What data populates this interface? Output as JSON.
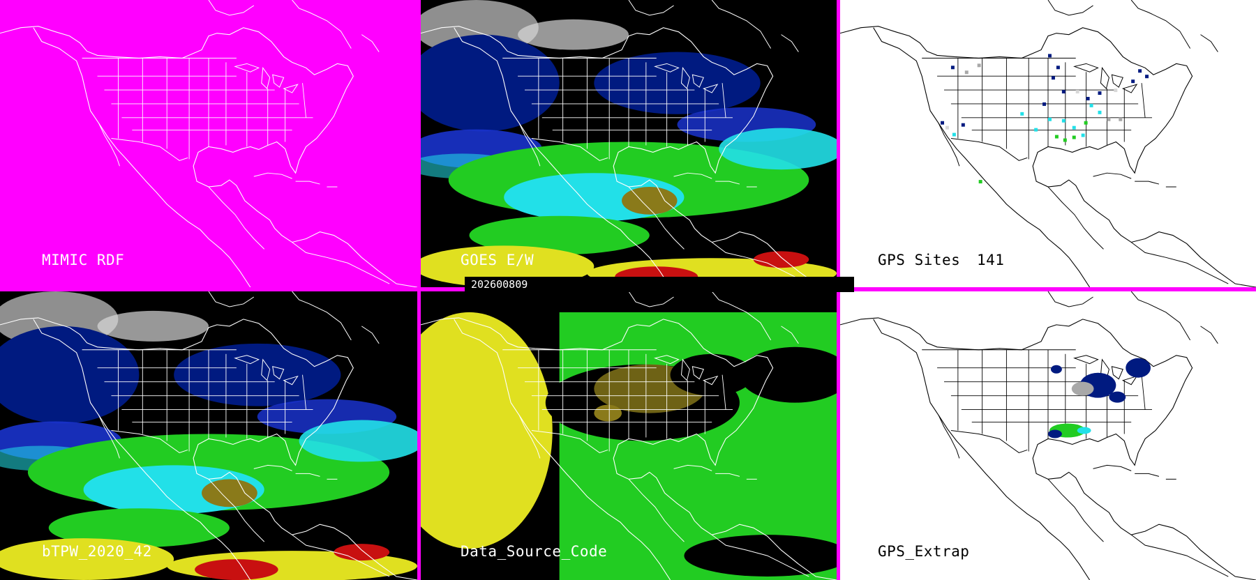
{
  "panels": {
    "mimic": {
      "label": "MIMIC RDF",
      "background": "#000000",
      "outline": "#ffffff"
    },
    "goes": {
      "label": "GOES E/W",
      "background": "#000000",
      "outline": "#ffffff"
    },
    "gps_sites": {
      "label": "GPS Sites",
      "count": "141",
      "background": "#ffffff",
      "outline": "#000000"
    },
    "btpw": {
      "label": "bTPW_2020_42",
      "background": "#000000",
      "outline": "#ffffff"
    },
    "data_source": {
      "label": "Data_Source_Code",
      "background": "#000000",
      "outline": "#ffffff"
    },
    "gps_extrap": {
      "label": "GPS_Extrap",
      "background": "#ffffff",
      "outline": "#000000"
    }
  },
  "timestamp": "202600809",
  "colors": {
    "divider": "#ff00ff",
    "navy": "#001a80",
    "blue": "#1a33cc",
    "cyan": "#22e0e8",
    "green": "#22cc22",
    "olive": "#8a7a1a",
    "yellow": "#e0e020",
    "red": "#c81010",
    "gray": "#a8a8a8",
    "light_gray": "#d8d8d8"
  }
}
